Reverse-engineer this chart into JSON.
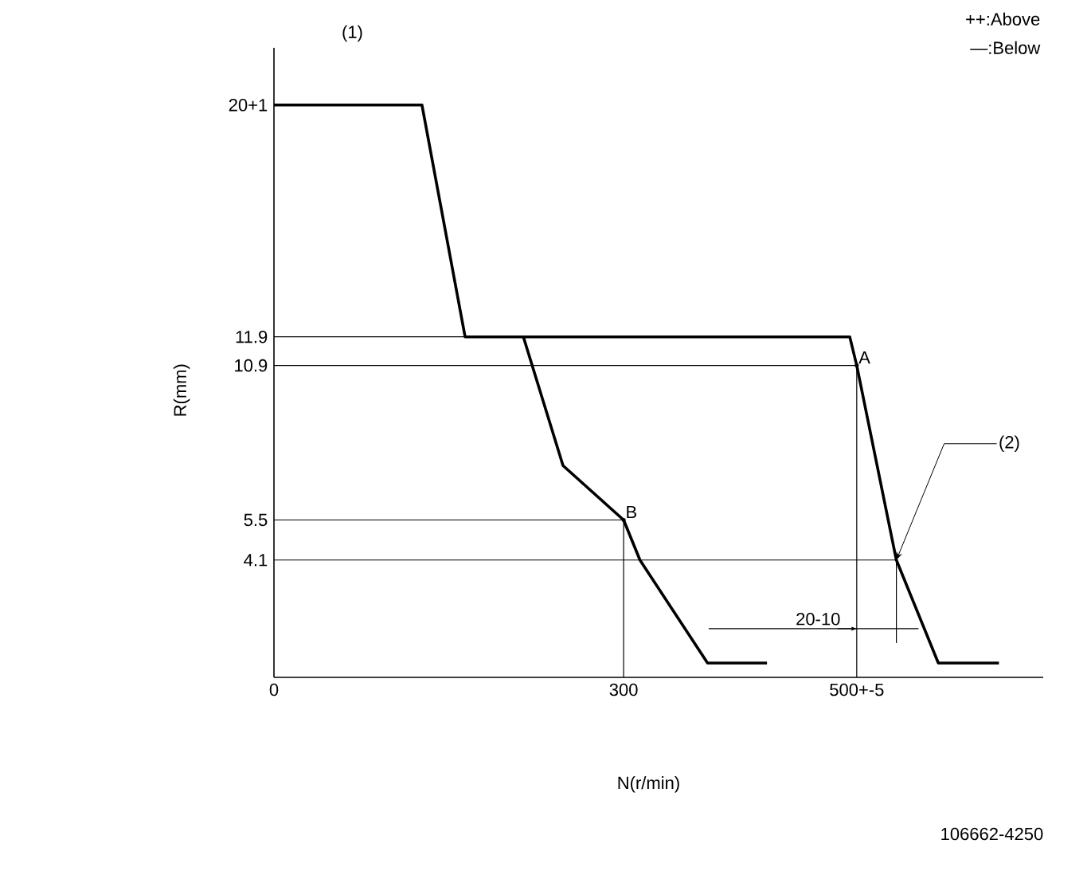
{
  "chart_data": {
    "type": "line",
    "xlabel": "N(r/min)",
    "ylabel": "R(mm)",
    "xlim": [
      0,
      660
    ],
    "ylim": [
      0,
      22
    ],
    "xticks": [
      0,
      300,
      {
        "value": 500,
        "label": "500+-5"
      }
    ],
    "yticks": [
      4.1,
      5.5,
      10.9,
      11.9,
      {
        "value": 20,
        "label": "20+1"
      }
    ],
    "marker": "none",
    "line_style": "solid",
    "series": [
      {
        "color": "#000000",
        "x": [
          0,
          127,
          164,
          494,
          500,
          534,
          570,
          622
        ],
        "values": [
          20,
          20,
          11.9,
          11.9,
          10.9,
          4.1,
          0.5,
          0.5
        ]
      },
      {
        "color": "#000000",
        "x": [
          214,
          248,
          300,
          314,
          372,
          423
        ],
        "values": [
          11.9,
          7.4,
          5.5,
          4.1,
          0.5,
          0.5
        ]
      },
      {
        "color": "#000000",
        "x": [
          0,
          164
        ],
        "values": [
          11.9,
          11.9
        ]
      },
      {
        "color": "#000000",
        "x": [
          0,
          500
        ],
        "values": [
          10.9,
          10.9
        ]
      },
      {
        "color": "#000000",
        "x": [
          0,
          300
        ],
        "values": [
          5.5,
          5.5
        ]
      },
      {
        "color": "#000000",
        "x": [
          0,
          534
        ],
        "values": [
          4.1,
          4.1
        ]
      },
      {
        "color": "#000000",
        "x": [
          300,
          300
        ],
        "values": [
          5.5,
          0
        ]
      },
      {
        "color": "#000000",
        "x": [
          500,
          500
        ],
        "values": [
          10.9,
          0
        ]
      },
      {
        "color": "#000000",
        "x": [
          534,
          534
        ],
        "values": [
          4.1,
          1.2
        ]
      },
      {
        "color": "#000000",
        "x": [
          373,
          553
        ],
        "values": [
          1.7,
          1.7
        ]
      }
    ],
    "annotations": [
      "(1)",
      "++:Above",
      "—:Below",
      {
        "text": "A",
        "x": 500,
        "y": 10.9
      },
      {
        "text": "B",
        "x": 300,
        "y": 5.5
      },
      {
        "text": "(2)",
        "x": 534,
        "y": 4.1
      },
      {
        "text": "20-10",
        "x": 500,
        "y": 1.7
      },
      "106662-4250"
    ]
  }
}
